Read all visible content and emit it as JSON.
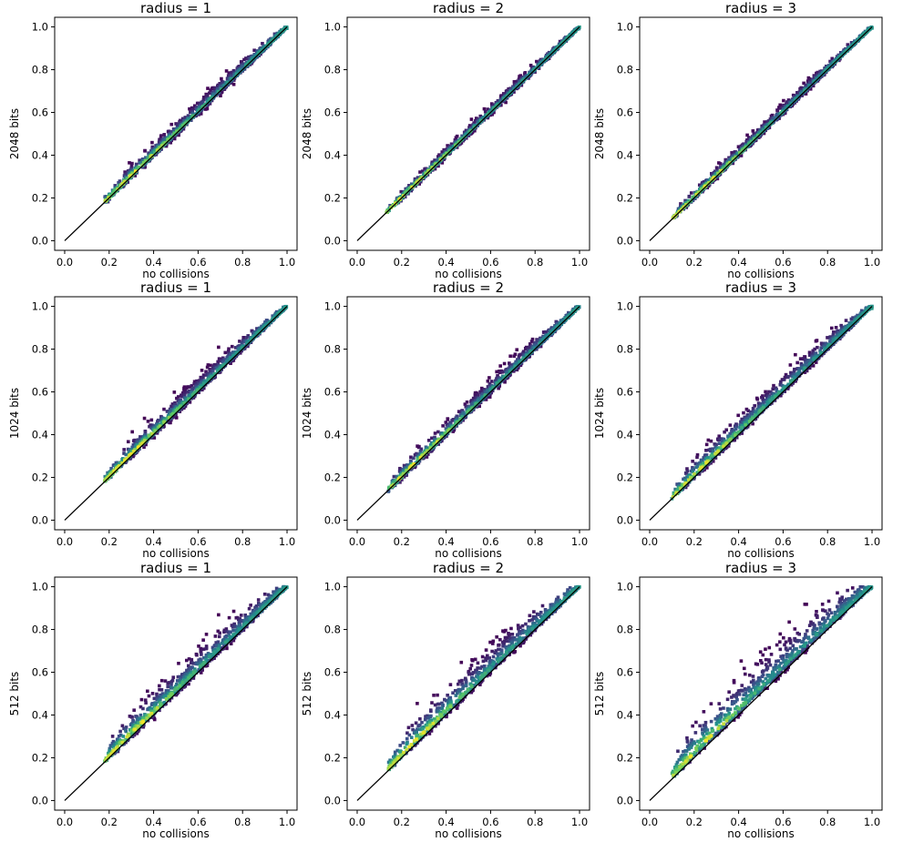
{
  "chart_data": {
    "type": "scatter",
    "description_of_marks": "density-colored scatter (viridis) with identity line y = x",
    "grid": false,
    "colormap": [
      "#440154",
      "#3b528b",
      "#21918c",
      "#5ec962",
      "#fde725"
    ],
    "line_color": "#000000",
    "xlabel": "no collisions",
    "xlim": [
      0.0,
      1.0
    ],
    "ylim": [
      0.0,
      1.0
    ],
    "xticks": [
      "0.0",
      "0.2",
      "0.4",
      "0.6",
      "0.8",
      "1.0"
    ],
    "yticks": [
      "0.0",
      "0.2",
      "0.4",
      "0.6",
      "0.8",
      "1.0"
    ],
    "identity_line": [
      [
        0.0,
        0.0
      ],
      [
        1.0,
        1.0
      ]
    ],
    "panels": [
      {
        "title": "radius = 1",
        "ylabel": "2048 bits",
        "x_min": 0.18,
        "spread_upper": 0.045,
        "spread_lower": 0.02
      },
      {
        "title": "radius = 2",
        "ylabel": "2048 bits",
        "x_min": 0.13,
        "spread_upper": 0.03,
        "spread_lower": 0.015
      },
      {
        "title": "radius = 3",
        "ylabel": "2048 bits",
        "x_min": 0.1,
        "spread_upper": 0.035,
        "spread_lower": 0.015
      },
      {
        "title": "radius = 1",
        "ylabel": "1024 bits",
        "x_min": 0.18,
        "spread_upper": 0.06,
        "spread_lower": 0.02
      },
      {
        "title": "radius = 2",
        "ylabel": "1024 bits",
        "x_min": 0.14,
        "spread_upper": 0.05,
        "spread_lower": 0.02
      },
      {
        "title": "radius = 3",
        "ylabel": "1024 bits",
        "x_min": 0.1,
        "spread_upper": 0.07,
        "spread_lower": 0.02
      },
      {
        "title": "radius = 1",
        "ylabel": "512 bits",
        "x_min": 0.18,
        "spread_upper": 0.09,
        "spread_lower": 0.025
      },
      {
        "title": "radius = 2",
        "ylabel": "512 bits",
        "x_min": 0.14,
        "spread_upper": 0.1,
        "spread_lower": 0.025
      },
      {
        "title": "radius = 3",
        "ylabel": "512 bits",
        "x_min": 0.1,
        "spread_upper": 0.13,
        "spread_lower": 0.025
      }
    ]
  }
}
